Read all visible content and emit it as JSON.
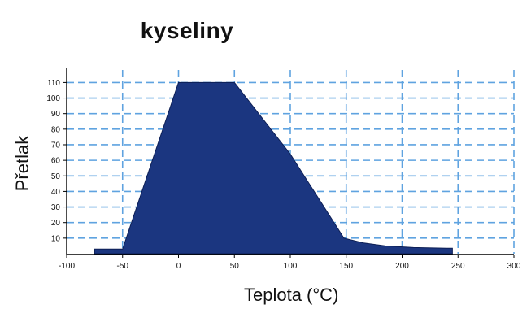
{
  "chart_data": {
    "type": "area",
    "title": "kyseliny",
    "xlabel": "Teplota (°C)",
    "ylabel": "Přetlak",
    "xlim": [
      -100,
      300
    ],
    "ylim": [
      0,
      117
    ],
    "x_ticks": [
      -100,
      -50,
      0,
      50,
      100,
      150,
      200,
      250,
      300
    ],
    "y_ticks": [
      10,
      20,
      30,
      40,
      50,
      60,
      70,
      80,
      90,
      100,
      110
    ],
    "grid": true,
    "series": [
      {
        "color": "#1b3680",
        "x": [
          -75,
          -50,
          0,
          50,
          100,
          148,
          165,
          185,
          210,
          240,
          245
        ],
        "y": [
          3,
          3,
          110,
          110,
          64,
          10,
          7,
          5,
          4,
          3.5,
          3.5
        ]
      }
    ],
    "colors": {
      "fill": "#1b3680",
      "grid": "#5fa3e0",
      "axis": "#000000"
    }
  }
}
